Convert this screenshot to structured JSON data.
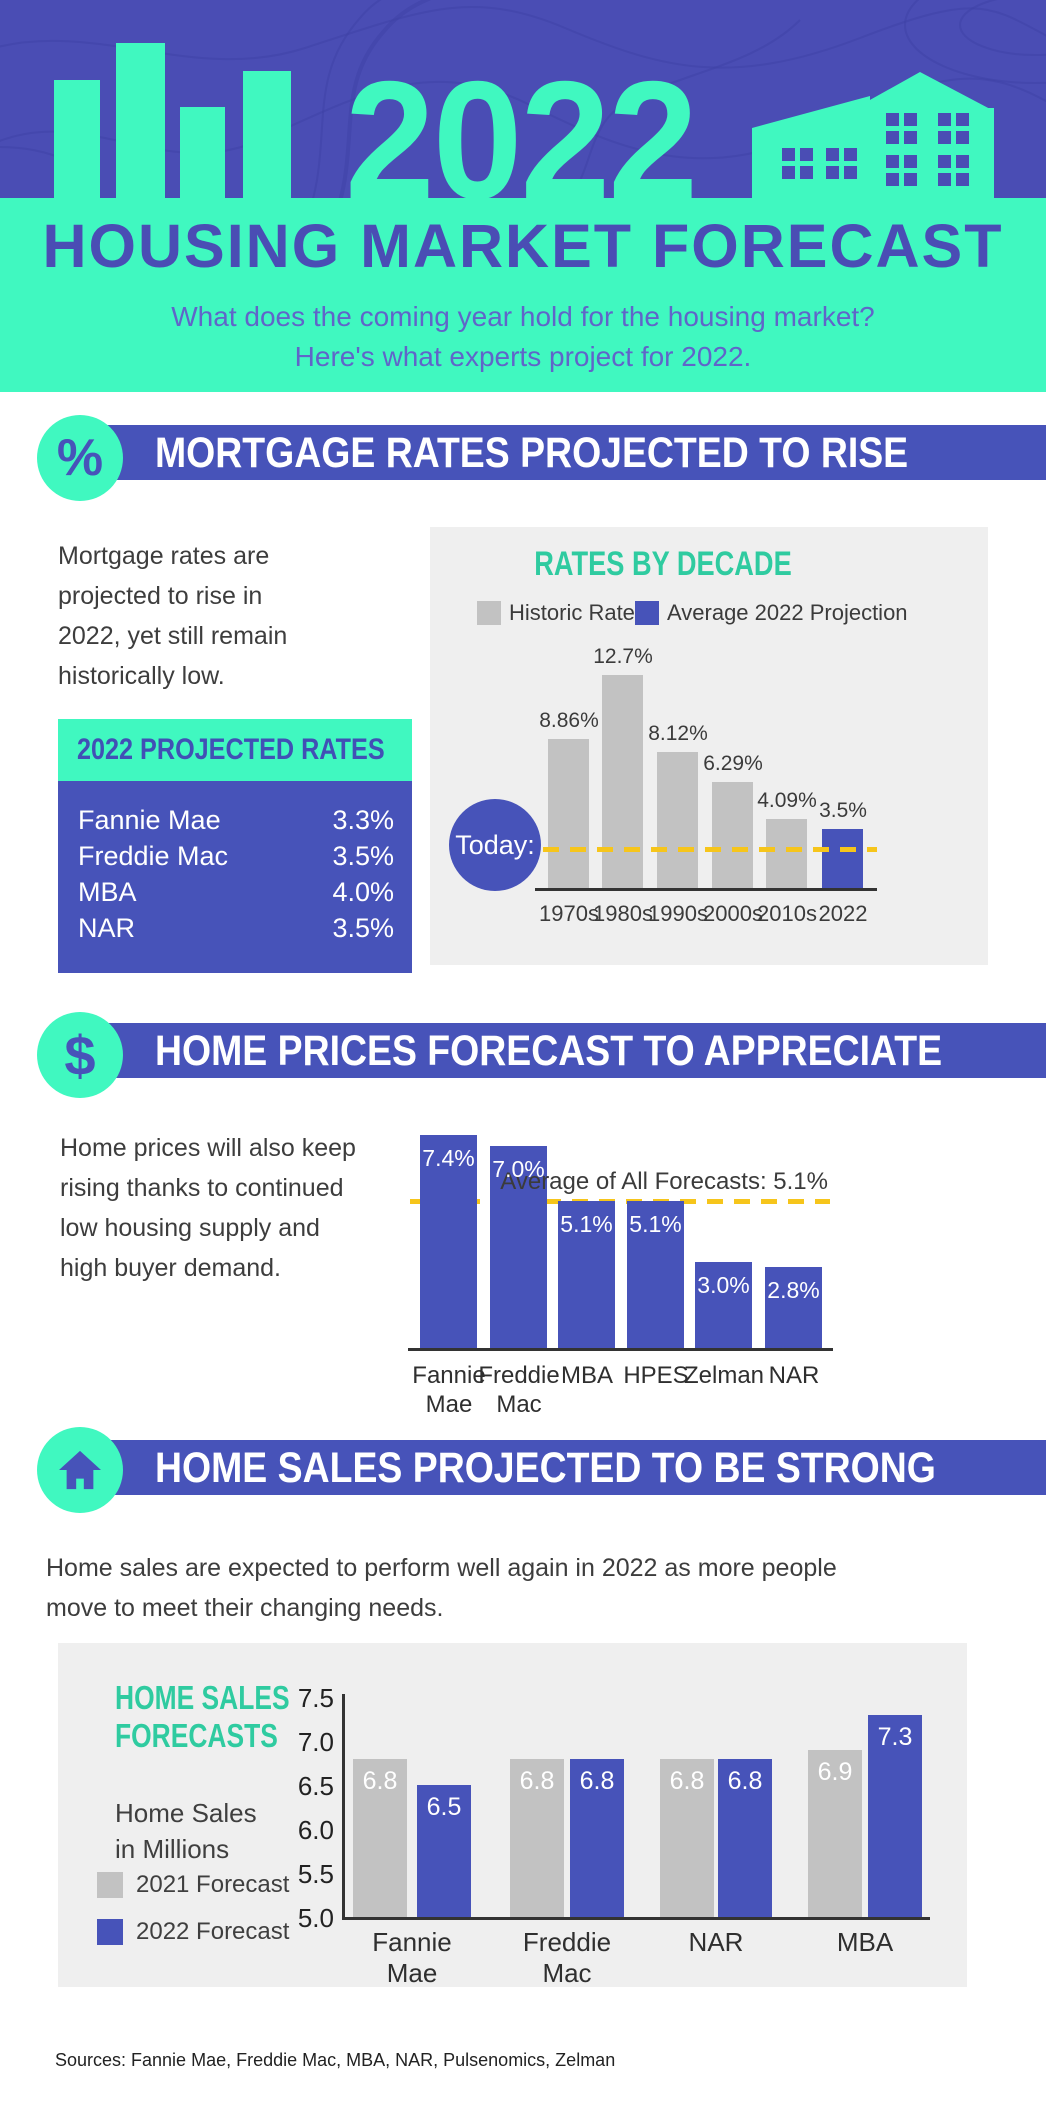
{
  "colors": {
    "purple": "#4753b9",
    "hero_purple": "#4a4db4",
    "teal": "#40f8c0",
    "teal_dark": "#2fcba0",
    "yellow": "#f6c51b",
    "gray_bar": "#c2c2c2",
    "panel_bg": "#efefef",
    "text_dark": "#3b3b3b"
  },
  "header": {
    "year": "2022",
    "title": "HOUSING MARKET FORECAST",
    "subtitle_line1": "What does the coming year hold for the housing market?",
    "subtitle_line2": "Here's what experts project for 2022."
  },
  "sections": {
    "rates": {
      "icon_glyph": "%",
      "title": "MORTGAGE RATES PROJECTED TO RISE",
      "paragraph_lines": [
        "Mortgage rates are",
        "projected to rise in",
        "2022, yet still remain",
        "historically low."
      ],
      "table": {
        "header": "2022 PROJECTED RATES",
        "rows": [
          {
            "label": "Fannie Mae",
            "value": "3.3%"
          },
          {
            "label": "Freddie Mac",
            "value": "3.5%"
          },
          {
            "label": "MBA",
            "value": "4.0%"
          },
          {
            "label": "NAR",
            "value": "3.5%"
          }
        ]
      }
    },
    "prices": {
      "icon_glyph": "$",
      "title": "HOME PRICES FORECAST TO APPRECIATE",
      "paragraph_lines": [
        "Home prices will also keep",
        "rising thanks to continued",
        "low housing supply and",
        "high buyer demand."
      ]
    },
    "sales": {
      "title": "HOME SALES PROJECTED TO BE STRONG",
      "paragraph_lines": [
        "Home sales are expected to perform well again in 2022 as more people",
        "move to meet their changing needs."
      ]
    }
  },
  "chart_data": [
    {
      "type": "bar",
      "title": "RATES BY DECADE",
      "legend": [
        {
          "label": "Historic Rate",
          "color": "#c2c2c2"
        },
        {
          "label": "Average 2022 Projection",
          "color": "#4753b9"
        }
      ],
      "categories": [
        "1970s",
        "1980s",
        "1990s",
        "2000s",
        "2010s",
        "2022"
      ],
      "values": [
        8.86,
        12.7,
        8.12,
        6.29,
        4.09,
        3.5
      ],
      "value_labels": [
        "8.86%",
        "12.7%",
        "8.12%",
        "6.29%",
        "4.09%",
        "3.5%"
      ],
      "highlight_index": 5,
      "annotation": {
        "badge": "Today:",
        "line_value": 2.3
      },
      "ylim": [
        0,
        13.3
      ],
      "xlabel": "",
      "ylabel": ""
    },
    {
      "type": "bar",
      "title": "",
      "categories": [
        [
          "Fannie",
          "Mae"
        ],
        [
          "Freddie",
          "Mac"
        ],
        [
          "MBA"
        ],
        [
          "HPES"
        ],
        [
          "Zelman"
        ],
        [
          "NAR"
        ]
      ],
      "values": [
        7.4,
        7.0,
        5.1,
        5.1,
        3.0,
        2.8
      ],
      "value_labels": [
        "7.4%",
        "7.0%",
        "5.1%",
        "5.1%",
        "3.0%",
        "2.8%"
      ],
      "average_line": {
        "value": 5.1,
        "label": "Average of All Forecasts: 5.1%"
      },
      "ylim": [
        0,
        8
      ],
      "xlabel": "",
      "ylabel": ""
    },
    {
      "type": "grouped_bar",
      "title_lines": [
        "HOME SALES",
        "FORECASTS"
      ],
      "note_lines": [
        "Home Sales",
        "in Millions"
      ],
      "categories": [
        [
          "Fannie",
          "Mae"
        ],
        [
          "Freddie",
          "Mac"
        ],
        [
          "NAR"
        ],
        [
          "MBA"
        ]
      ],
      "series": [
        {
          "name": "2021 Forecast",
          "color": "#c2c2c2",
          "values": [
            6.8,
            6.8,
            6.8,
            6.9
          ]
        },
        {
          "name": "2022 Forecast",
          "color": "#4753b9",
          "values": [
            6.5,
            6.8,
            6.8,
            7.3
          ]
        }
      ],
      "yticks": [
        7.5,
        7.0,
        6.5,
        6.0,
        5.5,
        5.0
      ],
      "ylim": [
        5.0,
        7.5
      ],
      "ylabel": "Home Sales in Millions",
      "xlabel": ""
    }
  ],
  "footer": {
    "sources": "Sources: Fannie Mae, Freddie Mac, MBA, NAR, Pulsenomics, Zelman"
  }
}
